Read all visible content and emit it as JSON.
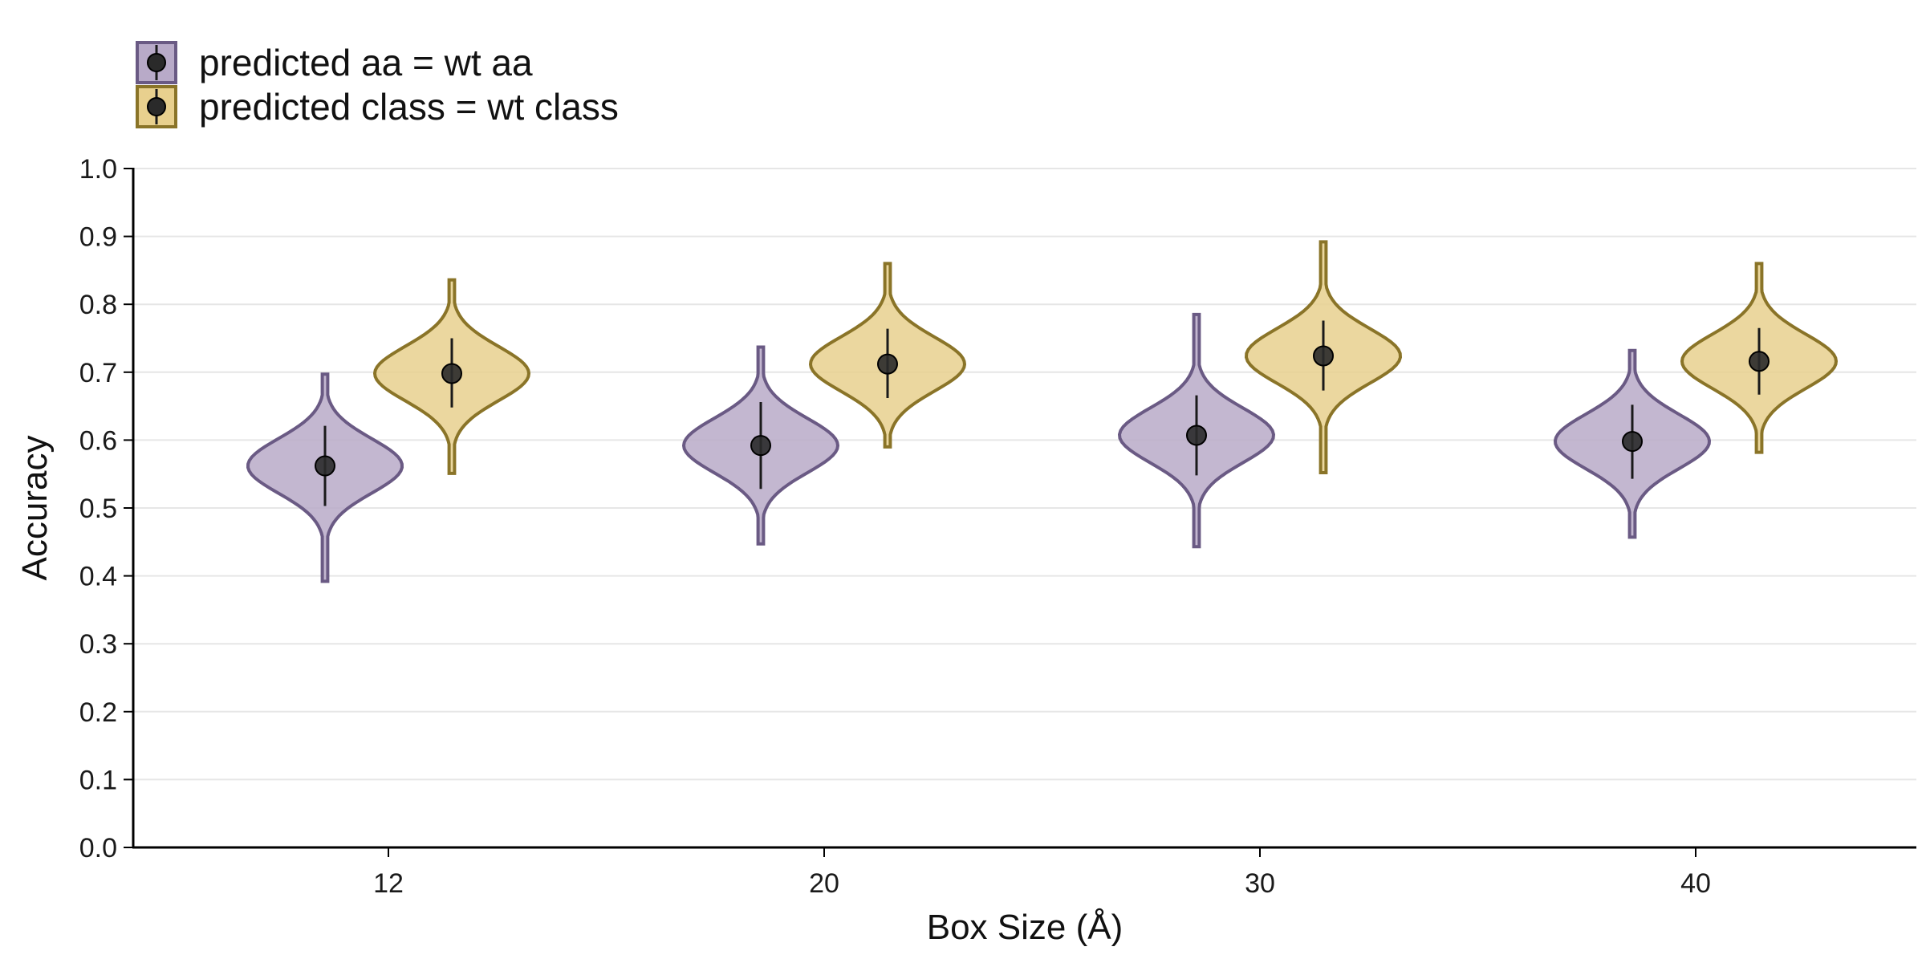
{
  "chart_data": {
    "type": "violin",
    "title": "",
    "xlabel": "Box Size (Å)",
    "ylabel": "Accuracy",
    "ylim": [
      0.0,
      1.0
    ],
    "yticks": [
      "0.0",
      "0.1",
      "0.2",
      "0.3",
      "0.4",
      "0.5",
      "0.6",
      "0.7",
      "0.8",
      "0.9",
      "1.0"
    ],
    "categories": [
      "12",
      "20",
      "30",
      "40"
    ],
    "grid": "horizontal",
    "legend_position": "top-left",
    "series": [
      {
        "name": "predicted aa = wt aa",
        "fill": "#b8aac8",
        "stroke": "#6a5a84",
        "mean": [
          0.562,
          0.592,
          0.607,
          0.598
        ],
        "error_low": [
          0.503,
          0.528,
          0.548,
          0.543
        ],
        "error_high": [
          0.621,
          0.656,
          0.666,
          0.652
        ],
        "min": [
          0.392,
          0.447,
          0.443,
          0.457
        ],
        "max": [
          0.697,
          0.737,
          0.785,
          0.732
        ]
      },
      {
        "name": "predicted class = wt class",
        "fill": "#e8d08e",
        "stroke": "#8a7428",
        "mean": [
          0.698,
          0.712,
          0.724,
          0.716
        ],
        "error_low": [
          0.648,
          0.662,
          0.673,
          0.667
        ],
        "error_high": [
          0.75,
          0.764,
          0.776,
          0.765
        ],
        "min": [
          0.551,
          0.59,
          0.552,
          0.582
        ],
        "max": [
          0.836,
          0.86,
          0.892,
          0.86
        ]
      }
    ]
  }
}
